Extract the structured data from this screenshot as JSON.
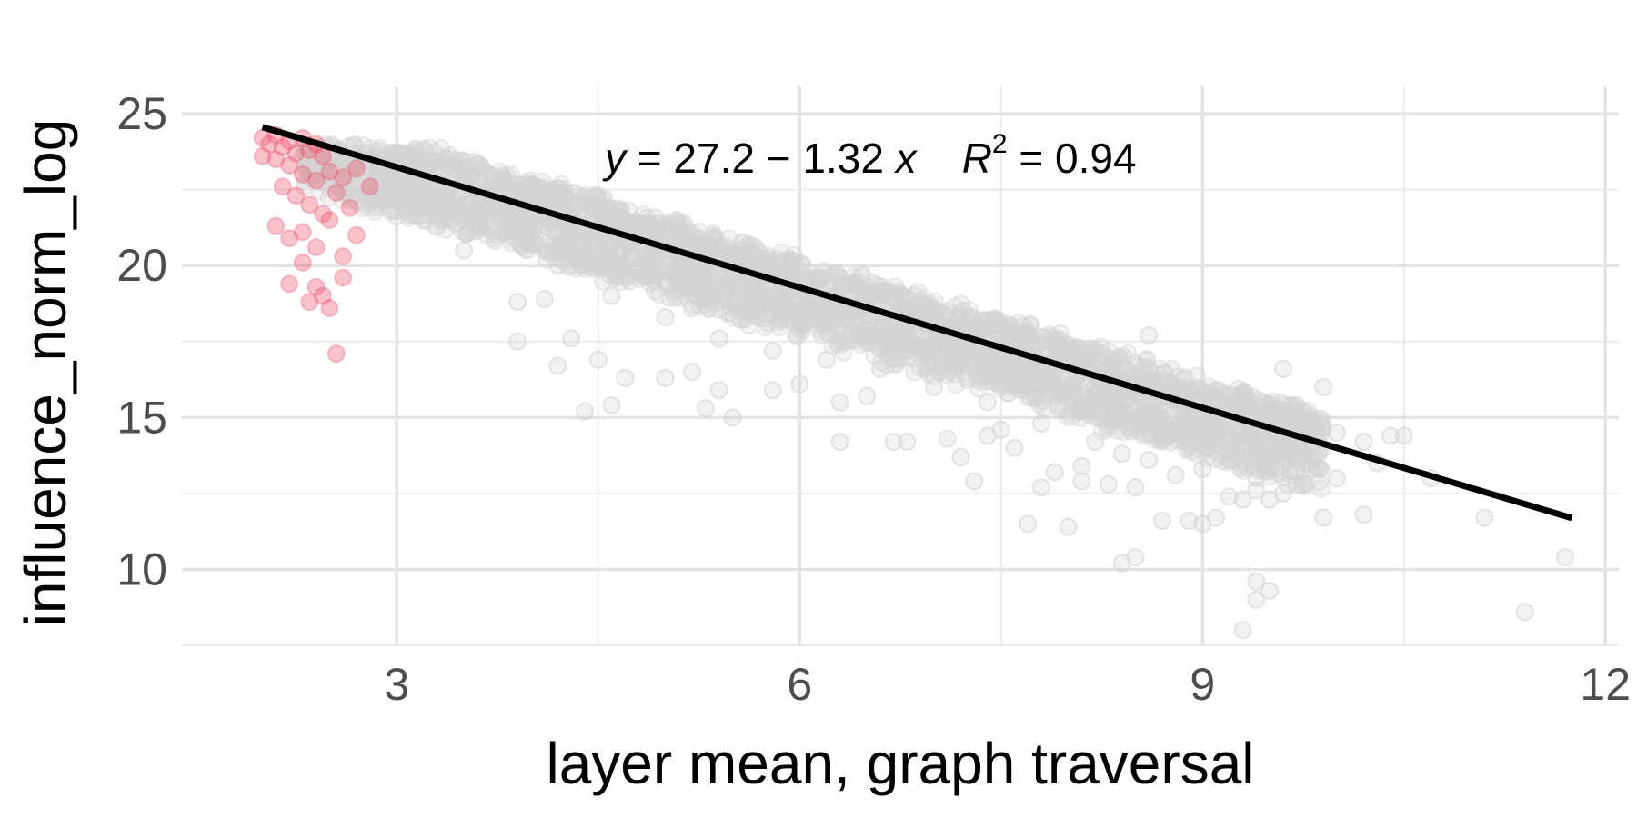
{
  "chart_data": {
    "type": "scatter",
    "xlabel": "layer mean, graph traversal",
    "ylabel": "influence_norm_log",
    "xlim": [
      1.4,
      12.1
    ],
    "ylim": [
      7.5,
      25.9
    ],
    "x_major_ticks": [
      3,
      6,
      9,
      12
    ],
    "x_tick_labels": [
      "3",
      "6",
      "9",
      "12"
    ],
    "x_minor_ticks": [
      4.5,
      7.5,
      10.5
    ],
    "y_major_ticks": [
      10,
      15,
      20,
      25
    ],
    "y_tick_labels": [
      "10",
      "15",
      "20",
      "25"
    ],
    "y_minor_ticks": [
      7.5,
      12.5,
      17.5,
      22.5
    ],
    "grid": true,
    "legend": "none",
    "series": [
      {
        "color": "#d3d3d3",
        "opacity": 0.3,
        "points": [
          [
            2.3,
            23.6
          ],
          [
            2.5,
            23.2
          ],
          [
            2.7,
            23.4
          ],
          [
            2.9,
            23.5
          ],
          [
            3.1,
            23.3
          ],
          [
            3.2,
            22.8
          ],
          [
            3.3,
            22.6
          ],
          [
            3.5,
            22.9
          ],
          [
            3.6,
            22.4
          ],
          [
            3.7,
            22.2
          ],
          [
            3.9,
            22.5
          ],
          [
            4.0,
            21.9
          ],
          [
            4.1,
            21.6
          ],
          [
            4.2,
            22.1
          ],
          [
            4.3,
            21.4
          ],
          [
            4.4,
            21.0
          ],
          [
            4.5,
            20.6
          ],
          [
            4.6,
            20.2
          ],
          [
            4.7,
            21.2
          ],
          [
            4.8,
            19.8
          ],
          [
            4.9,
            20.5
          ],
          [
            5.0,
            20.9
          ],
          [
            5.1,
            19.5
          ],
          [
            5.2,
            20.0
          ],
          [
            5.3,
            18.9
          ],
          [
            5.4,
            19.4
          ],
          [
            5.5,
            20.4
          ],
          [
            5.6,
            18.6
          ],
          [
            5.7,
            19.0
          ],
          [
            5.8,
            19.7
          ],
          [
            5.9,
            18.3
          ],
          [
            6.0,
            18.9
          ],
          [
            6.1,
            19.6
          ],
          [
            6.2,
            18.1
          ],
          [
            6.3,
            18.5
          ],
          [
            6.4,
            17.8
          ],
          [
            6.5,
            18.7
          ],
          [
            6.6,
            19.1
          ],
          [
            6.7,
            17.5
          ],
          [
            6.8,
            18.2
          ],
          [
            6.9,
            17.2
          ],
          [
            7.0,
            17.8
          ],
          [
            7.1,
            18.3
          ],
          [
            7.2,
            16.9
          ],
          [
            7.3,
            17.4
          ],
          [
            7.4,
            16.5
          ],
          [
            7.5,
            17.1
          ],
          [
            7.6,
            17.7
          ],
          [
            7.7,
            16.2
          ],
          [
            7.8,
            16.8
          ],
          [
            7.9,
            15.9
          ],
          [
            8.0,
            16.4
          ],
          [
            8.1,
            17.0
          ],
          [
            8.2,
            15.5
          ],
          [
            8.3,
            16.1
          ],
          [
            8.4,
            15.2
          ],
          [
            8.5,
            15.8
          ],
          [
            8.6,
            16.5
          ],
          [
            8.7,
            14.9
          ],
          [
            8.8,
            15.5
          ],
          [
            8.9,
            14.6
          ],
          [
            9.0,
            15.2
          ],
          [
            9.1,
            15.9
          ],
          [
            9.2,
            14.3
          ],
          [
            9.3,
            15.0
          ],
          [
            9.4,
            14.1
          ],
          [
            9.5,
            14.8
          ],
          [
            9.6,
            15.4
          ],
          [
            9.7,
            14.4
          ],
          [
            9.8,
            14.9
          ],
          [
            2.8,
            22.1
          ],
          [
            3.0,
            21.8
          ],
          [
            3.4,
            21.9
          ],
          [
            3.8,
            21.1
          ],
          [
            4.2,
            20.0
          ],
          [
            4.6,
            19.0
          ],
          [
            5.0,
            18.3
          ],
          [
            5.4,
            17.6
          ],
          [
            5.8,
            17.2
          ],
          [
            6.2,
            16.9
          ],
          [
            6.6,
            16.6
          ],
          [
            7.0,
            16.0
          ],
          [
            7.4,
            15.5
          ],
          [
            7.8,
            14.8
          ],
          [
            8.2,
            14.2
          ],
          [
            8.6,
            13.6
          ],
          [
            9.0,
            13.3
          ],
          [
            9.4,
            13.0
          ],
          [
            8.8,
            13.1
          ],
          [
            8.4,
            13.8
          ],
          [
            4.1,
            18.9
          ],
          [
            3.5,
            20.5
          ],
          [
            4.3,
            17.6
          ],
          [
            4.5,
            16.9
          ],
          [
            4.7,
            16.3
          ],
          [
            5.0,
            16.3
          ],
          [
            5.3,
            15.3
          ],
          [
            5.5,
            15.0
          ],
          [
            5.8,
            15.9
          ],
          [
            6.0,
            16.1
          ],
          [
            6.3,
            15.5
          ],
          [
            6.5,
            15.7
          ],
          [
            6.7,
            14.2
          ],
          [
            7.1,
            14.3
          ],
          [
            7.2,
            13.7
          ],
          [
            7.5,
            14.6
          ],
          [
            7.6,
            14.0
          ],
          [
            7.9,
            13.2
          ],
          [
            8.1,
            13.4
          ],
          [
            8.3,
            12.8
          ],
          [
            8.5,
            12.7
          ],
          [
            8.7,
            11.6
          ],
          [
            8.9,
            11.6
          ],
          [
            9.1,
            11.7
          ],
          [
            9.2,
            12.4
          ],
          [
            9.4,
            12.6
          ],
          [
            9.6,
            12.5
          ],
          [
            9.8,
            13.5
          ],
          [
            10.0,
            14.5
          ],
          [
            10.2,
            14.2
          ],
          [
            9.5,
            12.3
          ],
          [
            9.9,
            11.7
          ],
          [
            10.3,
            13.5
          ],
          [
            10.4,
            14.4
          ],
          [
            10.0,
            13.0
          ],
          [
            9.7,
            12.8
          ],
          [
            9.0,
            11.5
          ],
          [
            8.5,
            10.4
          ],
          [
            8.4,
            10.2
          ],
          [
            7.7,
            11.5
          ],
          [
            8.0,
            11.4
          ],
          [
            9.4,
            9.6
          ],
          [
            9.5,
            9.3
          ],
          [
            9.4,
            9.0
          ],
          [
            9.3,
            8.0
          ],
          [
            11.4,
            8.6
          ],
          [
            11.7,
            10.4
          ],
          [
            11.1,
            11.7
          ],
          [
            10.5,
            14.4
          ],
          [
            9.9,
            16.0
          ],
          [
            9.7,
            15.4
          ],
          [
            9.6,
            16.6
          ],
          [
            10.2,
            11.8
          ],
          [
            10.7,
            13.0
          ],
          [
            9.9,
            14.0
          ],
          [
            3.9,
            17.5
          ],
          [
            4.2,
            16.7
          ],
          [
            4.4,
            15.2
          ],
          [
            3.9,
            18.8
          ],
          [
            4.6,
            15.4
          ],
          [
            5.4,
            15.9
          ],
          [
            5.2,
            16.5
          ],
          [
            6.3,
            14.2
          ],
          [
            6.8,
            14.2
          ],
          [
            7.4,
            14.4
          ],
          [
            8.6,
            17.7
          ],
          [
            8.1,
            12.9
          ],
          [
            7.3,
            12.9
          ],
          [
            7.8,
            12.7
          ],
          [
            9.3,
            12.3
          ]
        ]
      },
      {
        "color": "#f0506a",
        "opacity": 0.35,
        "points": [
          [
            2.0,
            24.2
          ],
          [
            2.05,
            24.0
          ],
          [
            2.1,
            24.3
          ],
          [
            2.15,
            23.9
          ],
          [
            2.2,
            24.1
          ],
          [
            2.25,
            23.7
          ],
          [
            2.3,
            24.2
          ],
          [
            2.35,
            23.8
          ],
          [
            2.4,
            24.0
          ],
          [
            2.45,
            23.6
          ],
          [
            2.1,
            23.5
          ],
          [
            2.2,
            23.3
          ],
          [
            2.3,
            23.0
          ],
          [
            2.4,
            22.8
          ],
          [
            2.5,
            23.1
          ],
          [
            2.6,
            22.9
          ],
          [
            2.7,
            23.2
          ],
          [
            2.8,
            22.6
          ],
          [
            2.15,
            22.6
          ],
          [
            2.25,
            22.3
          ],
          [
            2.35,
            22.0
          ],
          [
            2.45,
            21.7
          ],
          [
            2.55,
            22.4
          ],
          [
            2.65,
            21.9
          ],
          [
            2.1,
            21.3
          ],
          [
            2.2,
            20.9
          ],
          [
            2.3,
            21.1
          ],
          [
            2.4,
            20.6
          ],
          [
            2.5,
            21.5
          ],
          [
            2.6,
            20.3
          ],
          [
            2.3,
            20.1
          ],
          [
            2.4,
            19.3
          ],
          [
            2.45,
            19.0
          ],
          [
            2.5,
            18.6
          ],
          [
            2.55,
            17.1
          ],
          [
            2.6,
            19.6
          ],
          [
            2.2,
            19.4
          ],
          [
            2.35,
            18.8
          ],
          [
            2.7,
            21.0
          ],
          [
            2.0,
            23.6
          ]
        ]
      }
    ],
    "trend_line": {
      "intercept": 27.2,
      "slope": -1.32,
      "x_range": [
        2.0,
        11.75
      ],
      "color": "#000000"
    },
    "annotation": {
      "y_var": "y",
      "equation_rest": " = 27.2 − 1.32 ",
      "x_var": "x",
      "r_var": "R",
      "r_exp": "2",
      "r_rest": " = 0.94"
    }
  }
}
